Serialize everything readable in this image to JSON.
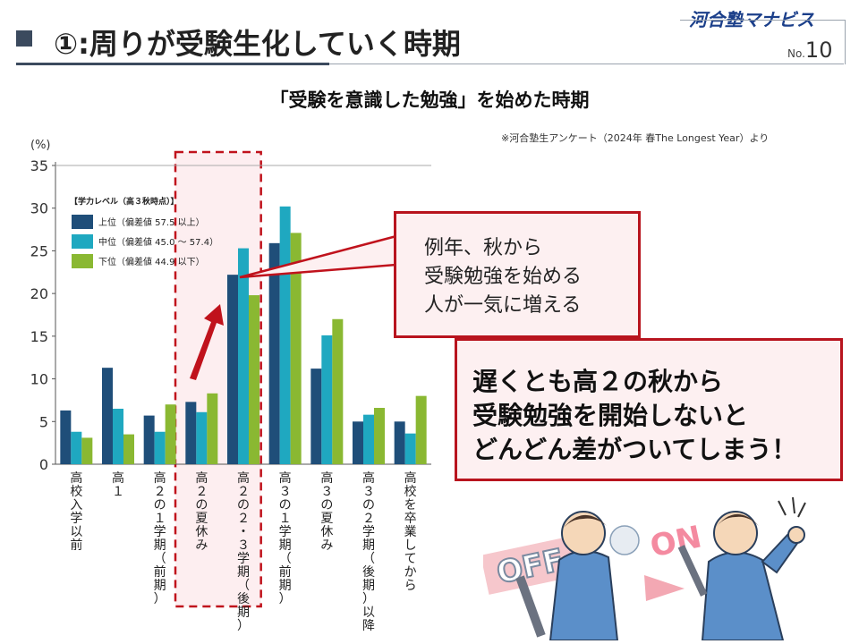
{
  "header": {
    "title": "①:周りが受験生化していく時期",
    "brand": "河合塾マナビス",
    "page_no_prefix": "No.",
    "page_no": "10"
  },
  "subtitle": "「受験を意識した勉強」を始めた時期",
  "source_note": "※河合塾生アンケート（2024年 春The Longest Year）より",
  "callout_small": "例年、秋から\n受験勉強を始める\n人が一気に増える",
  "callout_large": "遅くとも高２の秋から\n受験勉強を開始しないと\nどんどん差がついてしまう！",
  "illustration": {
    "off_label": "OFF",
    "on_label": "ON"
  },
  "colors": {
    "top": "#1f4e79",
    "middle": "#1fa8c0",
    "lower": "#8ab832",
    "accent": "#c0121c"
  },
  "chart_data": {
    "type": "bar",
    "ylabel": "(%)",
    "ylim": [
      0,
      35
    ],
    "yticks": [
      0,
      5,
      10,
      15,
      20,
      25,
      30,
      35
    ],
    "grid": false,
    "legend_title": "【学力レベル（高３秋時点）】",
    "legend_position": "top-left",
    "categories": [
      "高校入学以前",
      "高１",
      "高２の１学期（前期）",
      "高２の夏休み",
      "高２の２・３学期（後期）",
      "高３の１学期（前期）",
      "高３の夏休み",
      "高３の２学期（後期）以降",
      "高校を卒業してから"
    ],
    "series": [
      {
        "name": "上位（偏差値 57.5 以上）",
        "values": [
          6.3,
          11.3,
          5.7,
          7.3,
          22.2,
          25.9,
          11.2,
          5.0,
          5.0
        ]
      },
      {
        "name": "中位（偏差値 45.0 〜 57.4）",
        "values": [
          3.8,
          6.5,
          3.8,
          6.1,
          25.3,
          30.2,
          15.1,
          5.8,
          3.6
        ]
      },
      {
        "name": "下位（偏差値 44.9 以下）",
        "values": [
          3.1,
          3.5,
          7.0,
          8.3,
          19.8,
          27.1,
          17.0,
          6.6,
          8.0
        ]
      }
    ],
    "highlighted_category": "高２の夏休み"
  }
}
